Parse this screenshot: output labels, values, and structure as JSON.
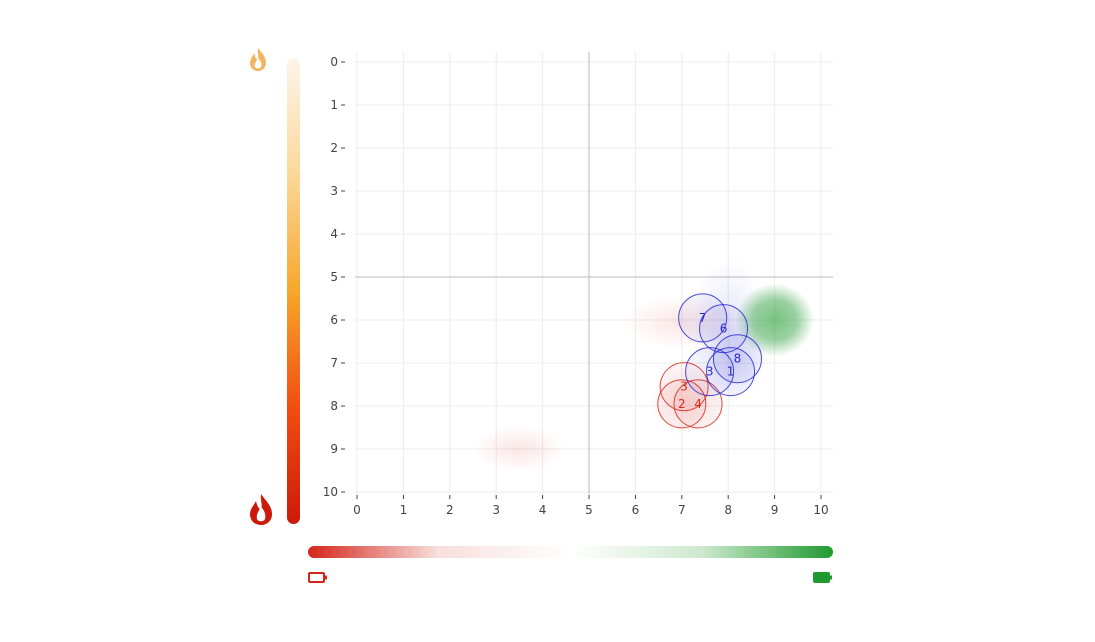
{
  "colors": {
    "red": "#d92b1f",
    "blue": "#2a2ad6",
    "green": "#1e9a2e",
    "flame_dark": "#cc1a0a",
    "flame_light": "#f2b563",
    "grid": "#ececec",
    "midline": "#c8c8c8"
  },
  "icons": {
    "top": "flame-icon-light",
    "bottom": "flame-icon-dark",
    "left": "battery-empty-icon",
    "right": "battery-full-icon"
  },
  "chart_data": {
    "type": "scatter",
    "x_range": [
      0,
      10
    ],
    "y_range": [
      0,
      10
    ],
    "y_reversed": true,
    "grid": true,
    "x_ticks": [
      "0",
      "1",
      "2",
      "3",
      "4",
      "5",
      "6",
      "7",
      "8",
      "9",
      "10"
    ],
    "y_ticks": [
      "0",
      "1",
      "2",
      "3",
      "4",
      "5",
      "6",
      "7",
      "8",
      "9",
      "10"
    ],
    "midlines": {
      "x": 5,
      "y": 5
    },
    "color_bars": {
      "vertical": [
        "#fdf5ea",
        "#fbd89a",
        "#f7a72b",
        "#f24d10",
        "#cc1a0a"
      ],
      "horizontal": [
        "#d52519",
        "#f7e0dd",
        "#ffffff",
        "#cfe9cf",
        "#1e9a2e"
      ]
    },
    "series": [
      {
        "color": "red",
        "points": [
          {
            "label": "2",
            "x": 7.0,
            "y": 7.95
          },
          {
            "label": "3",
            "x": 7.05,
            "y": 7.55
          },
          {
            "label": "4",
            "x": 7.35,
            "y": 7.95
          }
        ],
        "clouds": [
          {
            "x": 3.5,
            "y": 9.0,
            "w": 2.0,
            "h": 1.1,
            "opacity": 0.12
          },
          {
            "x": 7.0,
            "y": 6.05,
            "w": 2.6,
            "h": 1.25,
            "opacity": 0.12
          },
          {
            "x": 7.1,
            "y": 7.9,
            "w": 1.6,
            "h": 1.6,
            "opacity": 0.12
          }
        ]
      },
      {
        "color": "blue",
        "points": [
          {
            "label": "1",
            "x": 8.05,
            "y": 7.2
          },
          {
            "label": "3",
            "x": 7.6,
            "y": 7.2
          },
          {
            "label": "6",
            "x": 7.9,
            "y": 6.2
          },
          {
            "label": "7",
            "x": 7.45,
            "y": 5.95
          },
          {
            "label": "8",
            "x": 8.2,
            "y": 6.9
          }
        ],
        "clouds": [
          {
            "x": 8.0,
            "y": 6.15,
            "w": 1.6,
            "h": 3.2,
            "opacity": 0.12
          },
          {
            "x": 8.2,
            "y": 6.9,
            "w": 1.3,
            "h": 1.7,
            "opacity": 0.1
          }
        ]
      },
      {
        "color": "green",
        "points": [],
        "clouds": [
          {
            "x": 9.0,
            "y": 6.0,
            "w": 1.7,
            "h": 1.7,
            "opacity": 0.6
          }
        ]
      }
    ]
  }
}
